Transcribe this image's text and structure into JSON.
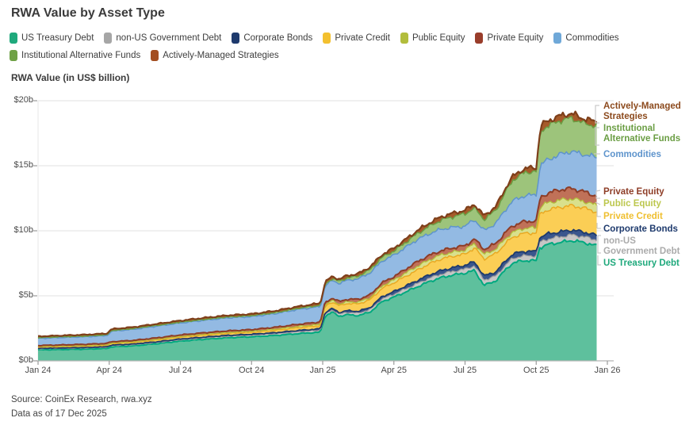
{
  "title": "RWA Value by Asset Type",
  "axis_title": "RWA Value (in US$ billion)",
  "source": {
    "line1": "Source: CoinEx Research, rwa.xyz",
    "line2": "Data as of 17 Dec 2025"
  },
  "legend": [
    {
      "label": "US Treasury Debt",
      "color": "#1FA97C"
    },
    {
      "label": "non-US Government Debt",
      "color": "#A6A6A6"
    },
    {
      "label": "Corporate Bonds",
      "color": "#1E3A6D"
    },
    {
      "label": "Private Credit",
      "color": "#F3C02F"
    },
    {
      "label": "Public Equity",
      "color": "#B2BD3C"
    },
    {
      "label": "Private Equity",
      "color": "#993D2B"
    },
    {
      "label": "Commodities",
      "color": "#6FA8D8"
    },
    {
      "label": "Institutional Alternative Funds",
      "color": "#6FA146"
    },
    {
      "label": "Actively-Managed Strategies",
      "color": "#A34E21"
    }
  ],
  "right_labels": [
    {
      "label": "Actively-Managed\nStrategies",
      "color": "#8C4A1D"
    },
    {
      "label": "Institutional\nAlternative Funds",
      "color": "#6B9E44"
    },
    {
      "label": "Commodities",
      "color": "#5E94CC"
    },
    {
      "label": "Private Equity",
      "color": "#8E3D27"
    },
    {
      "label": "Public Equity",
      "color": "#BCC74D"
    },
    {
      "label": "Private Credit",
      "color": "#EFBF2F"
    },
    {
      "label": "Corporate Bonds",
      "color": "#1E3A6D"
    },
    {
      "label": "non-US\nGovernment Debt",
      "color": "#ABABAB"
    },
    {
      "label": "US Treasury Debt",
      "color": "#1FA97C"
    }
  ],
  "chart_data": {
    "type": "area",
    "stacked": true,
    "title": "RWA Value by Asset Type",
    "ylabel": "RWA Value (in US$ billion)",
    "unit": "US$ billion",
    "x_unit": "months since Jan 2024",
    "x_range": [
      0,
      24
    ],
    "x_end_of_data": 23.55,
    "x_ticks": [
      0,
      3,
      6,
      9,
      12,
      15,
      18,
      21,
      24
    ],
    "x_ticklabels": [
      "Jan 24",
      "Apr 24",
      "Jul 24",
      "Oct 24",
      "Jan 25",
      "Apr 25",
      "Jul 25",
      "Oct 25",
      "Jan 26"
    ],
    "y_ticks": [
      0,
      5,
      10,
      15,
      20
    ],
    "y_ticklabels": [
      "$0b",
      "$5b",
      "$10b",
      "$15b",
      "$20b"
    ],
    "ylim": [
      0,
      20
    ],
    "grid": true,
    "legend_position": "top",
    "series": [
      {
        "name": "US Treasury Debt",
        "fill": "#5EC09D",
        "stroke": "#00A97F",
        "anchors": [
          [
            0,
            0.85
          ],
          [
            1,
            0.87
          ],
          [
            2,
            0.9
          ],
          [
            2.9,
            0.95
          ],
          [
            3.1,
            1.08
          ],
          [
            4,
            1.15
          ],
          [
            5,
            1.32
          ],
          [
            6,
            1.52
          ],
          [
            7,
            1.66
          ],
          [
            8,
            1.78
          ],
          [
            9,
            1.85
          ],
          [
            10,
            1.95
          ],
          [
            11,
            2.1
          ],
          [
            11.9,
            2.2
          ],
          [
            12.1,
            3.45
          ],
          [
            12.4,
            3.75
          ],
          [
            12.7,
            3.42
          ],
          [
            13,
            3.55
          ],
          [
            13.5,
            3.48
          ],
          [
            14,
            3.75
          ],
          [
            14.5,
            4.55
          ],
          [
            15,
            4.9
          ],
          [
            15.5,
            5.3
          ],
          [
            16,
            5.7
          ],
          [
            16.5,
            6.1
          ],
          [
            17,
            6.4
          ],
          [
            17.5,
            6.6
          ],
          [
            18,
            6.75
          ],
          [
            18.4,
            6.95
          ],
          [
            18.8,
            5.8
          ],
          [
            19.3,
            6.15
          ],
          [
            19.7,
            7.0
          ],
          [
            20,
            7.5
          ],
          [
            20.4,
            7.7
          ],
          [
            21,
            7.7
          ],
          [
            21.15,
            8.7
          ],
          [
            21.5,
            8.95
          ],
          [
            22,
            9.1
          ],
          [
            22.5,
            9.25
          ],
          [
            23,
            9.1
          ],
          [
            23.55,
            8.85
          ]
        ]
      },
      {
        "name": "non-US Government Debt",
        "fill": "#C6C6C6",
        "stroke": "#9B9B9B",
        "anchors": [
          [
            0,
            0.08
          ],
          [
            6,
            0.1
          ],
          [
            9,
            0.12
          ],
          [
            12,
            0.16
          ],
          [
            15,
            0.22
          ],
          [
            18,
            0.3
          ],
          [
            18.8,
            0.42
          ],
          [
            19.5,
            0.35
          ],
          [
            21,
            0.38
          ],
          [
            21.3,
            0.42
          ],
          [
            23.55,
            0.45
          ]
        ]
      },
      {
        "name": "Corporate Bonds",
        "fill": "#3A568D",
        "stroke": "#1E3A6D",
        "anchors": [
          [
            0,
            0.03
          ],
          [
            6,
            0.05
          ],
          [
            9,
            0.07
          ],
          [
            12,
            0.1
          ],
          [
            14,
            0.15
          ],
          [
            15,
            0.2
          ],
          [
            16,
            0.24
          ],
          [
            18,
            0.3
          ],
          [
            20,
            0.33
          ],
          [
            21,
            0.34
          ],
          [
            21.3,
            0.4
          ],
          [
            23.55,
            0.35
          ]
        ]
      },
      {
        "name": "Private Credit",
        "fill": "#FBCE55",
        "stroke": "#E9A923",
        "anchors": [
          [
            0,
            0.1
          ],
          [
            3,
            0.12
          ],
          [
            6,
            0.16
          ],
          [
            9,
            0.16
          ],
          [
            11.9,
            0.25
          ],
          [
            12.1,
            0.48
          ],
          [
            13,
            0.55
          ],
          [
            14,
            0.6
          ],
          [
            15,
            0.68
          ],
          [
            16,
            0.8
          ],
          [
            17,
            0.9
          ],
          [
            18,
            0.85
          ],
          [
            18.8,
            1.3
          ],
          [
            19.3,
            1.4
          ],
          [
            20,
            1.3
          ],
          [
            20.6,
            1.4
          ],
          [
            21,
            1.42
          ],
          [
            21.2,
            1.8
          ],
          [
            22,
            1.9
          ],
          [
            23,
            1.85
          ],
          [
            23.55,
            1.8
          ]
        ]
      },
      {
        "name": "Public Equity",
        "fill": "#D9E08C",
        "stroke": "#B2BD3C",
        "anchors": [
          [
            0,
            0.03
          ],
          [
            6,
            0.05
          ],
          [
            9,
            0.07
          ],
          [
            12,
            0.1
          ],
          [
            14,
            0.15
          ],
          [
            15,
            0.22
          ],
          [
            16,
            0.3
          ],
          [
            18,
            0.32
          ],
          [
            19,
            0.35
          ],
          [
            20,
            0.38
          ],
          [
            21,
            0.4
          ],
          [
            21.2,
            0.55
          ],
          [
            22,
            0.55
          ],
          [
            23.55,
            0.5
          ]
        ]
      },
      {
        "name": "Private Equity",
        "fill": "#C07158",
        "stroke": "#8E3D27",
        "anchors": [
          [
            0,
            0.09
          ],
          [
            3,
            0.1
          ],
          [
            6,
            0.11
          ],
          [
            9,
            0.13
          ],
          [
            12,
            0.18
          ],
          [
            14,
            0.22
          ],
          [
            15,
            0.25
          ],
          [
            16,
            0.35
          ],
          [
            17,
            0.32
          ],
          [
            18,
            0.33
          ],
          [
            19,
            0.4
          ],
          [
            20,
            0.5
          ],
          [
            21,
            0.52
          ],
          [
            21.2,
            0.7
          ],
          [
            22,
            0.8
          ],
          [
            23,
            0.75
          ],
          [
            23.55,
            0.7
          ]
        ]
      },
      {
        "name": "Commodities",
        "fill": "#93BAE3",
        "stroke": "#5E94CC",
        "anchors": [
          [
            0,
            0.55
          ],
          [
            1,
            0.57
          ],
          [
            2,
            0.58
          ],
          [
            2.9,
            0.6
          ],
          [
            3.1,
            0.8
          ],
          [
            4,
            0.85
          ],
          [
            5,
            0.9
          ],
          [
            6,
            0.92
          ],
          [
            7,
            0.96
          ],
          [
            8,
            1.0
          ],
          [
            9,
            1.0
          ],
          [
            10,
            1.05
          ],
          [
            11,
            1.15
          ],
          [
            11.9,
            1.18
          ],
          [
            12.1,
            1.3
          ],
          [
            13,
            1.45
          ],
          [
            14,
            1.7
          ],
          [
            15,
            1.65
          ],
          [
            16,
            1.7
          ],
          [
            17,
            1.65
          ],
          [
            18,
            1.5
          ],
          [
            18.8,
            1.45
          ],
          [
            19.3,
            1.55
          ],
          [
            20,
            1.9
          ],
          [
            20.6,
            2.0
          ],
          [
            21,
            2.0
          ],
          [
            21.2,
            2.5
          ],
          [
            22,
            2.7
          ],
          [
            22.4,
            2.85
          ],
          [
            23,
            2.85
          ],
          [
            23.55,
            3.0
          ]
        ]
      },
      {
        "name": "Institutional Alternative Funds",
        "fill": "#9DC47B",
        "stroke": "#6B9E44",
        "anchors": [
          [
            0,
            0.05
          ],
          [
            6,
            0.06
          ],
          [
            9,
            0.07
          ],
          [
            11,
            0.08
          ],
          [
            12,
            0.12
          ],
          [
            13,
            0.18
          ],
          [
            14,
            0.25
          ],
          [
            15,
            0.32
          ],
          [
            16,
            0.45
          ],
          [
            17,
            0.7
          ],
          [
            18,
            0.95
          ],
          [
            18.8,
            0.85
          ],
          [
            19.3,
            1.0
          ],
          [
            20,
            1.6
          ],
          [
            20.6,
            1.8
          ],
          [
            21,
            1.8
          ],
          [
            21.2,
            2.6
          ],
          [
            22,
            2.6
          ],
          [
            22.5,
            2.55
          ],
          [
            23,
            2.4
          ],
          [
            23.55,
            2.4
          ]
        ]
      },
      {
        "name": "Actively-Managed Strategies",
        "fill": "#A65B2A",
        "stroke": "#7E3F1A",
        "anchors": [
          [
            0,
            0.1
          ],
          [
            6,
            0.12
          ],
          [
            9,
            0.13
          ],
          [
            12,
            0.15
          ],
          [
            15,
            0.22
          ],
          [
            18,
            0.28
          ],
          [
            20,
            0.3
          ],
          [
            21,
            0.3
          ],
          [
            21.2,
            0.4
          ],
          [
            23.55,
            0.33
          ]
        ]
      }
    ]
  }
}
